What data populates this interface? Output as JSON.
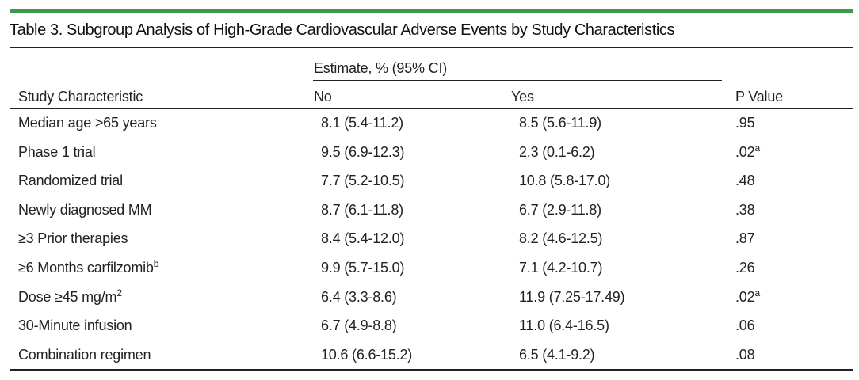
{
  "title": "Table 3. Subgroup Analysis of High-Grade Cardiovascular Adverse Events by Study Characteristics",
  "header": {
    "group": "Estimate, % (95% CI)",
    "characteristic": "Study Characteristic",
    "no": "No",
    "yes": "Yes",
    "p": "P Value"
  },
  "rows": [
    {
      "characteristic": "Median age >65 years",
      "no": "8.1 (5.4-11.2)",
      "yes": "8.5 (5.6-11.9)",
      "p": ".95"
    },
    {
      "characteristic": "Phase 1 trial",
      "no": "9.5 (6.9-12.3)",
      "yes": "2.3 (0.1-6.2)",
      "p": ".02",
      "p_sup": "a"
    },
    {
      "characteristic": "Randomized trial",
      "no": "7.7 (5.2-10.5)",
      "yes": "10.8 (5.8-17.0)",
      "p": ".48"
    },
    {
      "characteristic": "Newly diagnosed MM",
      "no": "8.7 (6.1-11.8)",
      "yes": "6.7 (2.9-11.8)",
      "p": ".38"
    },
    {
      "characteristic": "≥3 Prior therapies",
      "no": "8.4 (5.4-12.0)",
      "yes": "8.2 (4.6-12.5)",
      "p": ".87"
    },
    {
      "characteristic": "≥6 Months carfilzomib",
      "characteristic_sup": "b",
      "no": "9.9 (5.7-15.0)",
      "yes": "7.1 (4.2-10.7)",
      "p": ".26"
    },
    {
      "characteristic": "Dose ≥45 mg/m",
      "characteristic_sup": "2",
      "no": "6.4 (3.3-8.6)",
      "yes": "11.9 (7.25-17.49)",
      "p": ".02",
      "p_sup": "a"
    },
    {
      "characteristic": "30-Minute infusion",
      "no": "6.7 (4.9-8.8)",
      "yes": "11.0 (6.4-16.5)",
      "p": ".06"
    },
    {
      "characteristic": "Combination regimen",
      "no": "10.6 (6.6-15.2)",
      "yes": "6.5 (4.1-9.2)",
      "p": ".08"
    }
  ]
}
